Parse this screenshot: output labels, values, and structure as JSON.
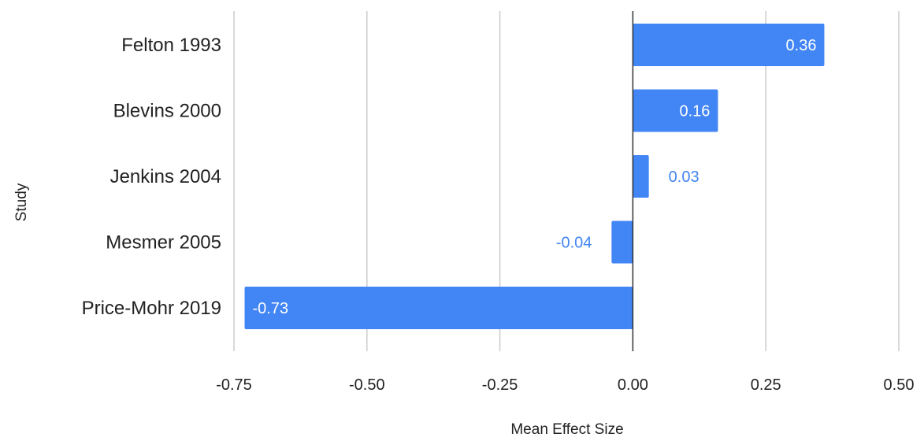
{
  "chart_data": {
    "type": "bar",
    "orientation": "horizontal",
    "xlabel": "Mean Effect Size",
    "ylabel": "Study",
    "categories": [
      "Felton 1993",
      "Blevins 2000",
      "Jenkins 2004",
      "Mesmer 2005",
      "Price-Mohr 2019"
    ],
    "values": [
      0.36,
      0.16,
      0.03,
      -0.04,
      -0.73
    ],
    "data_labels": [
      "0.36",
      "0.16",
      "0.03",
      "-0.04",
      "-0.73"
    ],
    "xlim": [
      -0.75,
      0.5
    ],
    "xticks": [
      -0.75,
      -0.5,
      -0.25,
      0,
      0.25,
      0.5
    ],
    "xtick_labels": [
      "-0.75",
      "-0.50",
      "-0.25",
      "0.00",
      "0.25",
      "0.50"
    ],
    "grid": true,
    "legend": "none",
    "bar_color": "#4285f4"
  }
}
